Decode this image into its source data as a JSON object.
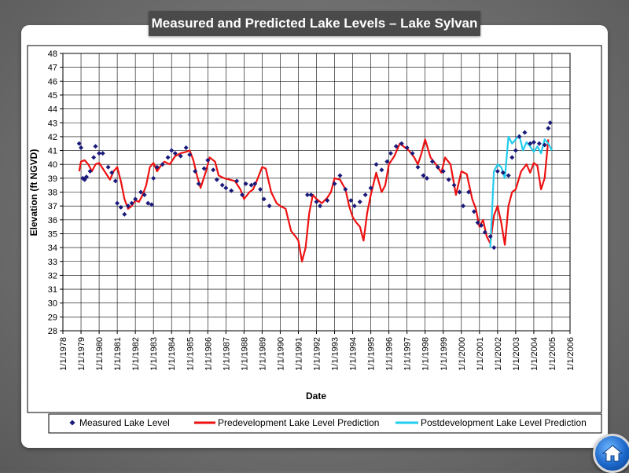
{
  "slide": {
    "title": "Measured and Predicted Lake Levels – Lake Sylvan"
  },
  "home_button": {
    "icon": "home-icon",
    "label": "Home"
  },
  "chart_data": {
    "type": "line",
    "title": "Measured and Predicted Lake Levels – Lake Sylvan",
    "xlabel": "Date",
    "ylabel": "Elevation (ft NGVD)",
    "ylim": [
      28,
      48
    ],
    "y_ticks": [
      28,
      29,
      30,
      31,
      32,
      33,
      34,
      35,
      36,
      37,
      38,
      39,
      40,
      41,
      42,
      43,
      44,
      45,
      46,
      47,
      48
    ],
    "x_range": [
      1978,
      2006
    ],
    "x_ticks": [
      {
        "year": 1978,
        "label": "1/1/1978"
      },
      {
        "year": 1979,
        "label": "1/1/1979"
      },
      {
        "year": 1980,
        "label": "1/1/1980"
      },
      {
        "year": 1981,
        "label": "1/1/1981"
      },
      {
        "year": 1982,
        "label": "1/1/1982"
      },
      {
        "year": 1983,
        "label": "1/1/1983"
      },
      {
        "year": 1984,
        "label": "1/1/1984"
      },
      {
        "year": 1985,
        "label": "1/1/1985"
      },
      {
        "year": 1986,
        "label": "1/1/1986"
      },
      {
        "year": 1987,
        "label": "1/1/1987"
      },
      {
        "year": 1988,
        "label": "1/1/1988"
      },
      {
        "year": 1989,
        "label": "1/1/1989"
      },
      {
        "year": 1990,
        "label": "1/1/1990"
      },
      {
        "year": 1991,
        "label": "1/1/1991"
      },
      {
        "year": 1992,
        "label": "1/1/1992"
      },
      {
        "year": 1993,
        "label": "1/1/1993"
      },
      {
        "year": 1994,
        "label": "1/1/1994"
      },
      {
        "year": 1995,
        "label": "1/1/1995"
      },
      {
        "year": 1996,
        "label": "1/1/1996"
      },
      {
        "year": 1997,
        "label": "1/1/1997"
      },
      {
        "year": 1998,
        "label": "1/1/1998"
      },
      {
        "year": 1999,
        "label": "1/1/1999"
      },
      {
        "year": 2000,
        "label": "1/1/2000"
      },
      {
        "year": 2001,
        "label": "1/1/2001"
      },
      {
        "year": 2002,
        "label": "1/1/2002"
      },
      {
        "year": 2003,
        "label": "1/1/2003"
      },
      {
        "year": 2004,
        "label": "1/1/2004"
      },
      {
        "year": 2005,
        "label": "1/1/2005"
      },
      {
        "year": 2006,
        "label": "1/1/2006"
      }
    ],
    "grid": true,
    "legend_position": "bottom",
    "series": [
      {
        "name": "Measured Lake Level",
        "marker": "diamond",
        "color": "#1a1a7a",
        "x": [
          1978.9,
          1979.0,
          1979.1,
          1979.2,
          1979.3,
          1979.5,
          1979.7,
          1979.8,
          1980.0,
          1980.2,
          1980.5,
          1980.7,
          1980.9,
          1981.0,
          1981.2,
          1981.4,
          1981.6,
          1981.8,
          1982.0,
          1982.3,
          1982.5,
          1982.7,
          1982.9,
          1983.0,
          1983.2,
          1983.5,
          1983.8,
          1984.0,
          1984.2,
          1984.5,
          1984.8,
          1985.0,
          1985.3,
          1985.5,
          1985.8,
          1986.0,
          1986.3,
          1986.5,
          1986.8,
          1987.0,
          1987.3,
          1987.6,
          1987.9,
          1988.1,
          1988.4,
          1988.6,
          1988.9,
          1989.1,
          1989.4,
          1991.5,
          1991.7,
          1992.0,
          1992.2,
          1992.6,
          1993.0,
          1993.3,
          1993.6,
          1993.9,
          1994.1,
          1994.4,
          1994.7,
          1995.0,
          1995.3,
          1995.6,
          1995.9,
          1996.1,
          1996.4,
          1996.7,
          1997.0,
          1997.3,
          1997.6,
          1997.9,
          1998.1,
          1998.4,
          1998.7,
          1999.0,
          1999.3,
          1999.6,
          1999.9,
          2000.1,
          2000.4,
          2000.7,
          2000.9,
          2001.1,
          2001.3,
          2001.6,
          2001.8,
          2002.0,
          2002.3,
          2002.6,
          2002.8,
          2003.0,
          2003.2,
          2003.5,
          2003.8,
          2004.0,
          2004.3,
          2004.6,
          2004.8,
          2004.9
        ],
        "y": [
          41.5,
          41.2,
          39.0,
          38.9,
          39.1,
          39.5,
          40.5,
          41.3,
          40.8,
          40.8,
          39.8,
          39.4,
          38.8,
          37.2,
          36.9,
          36.4,
          37.0,
          37.2,
          37.5,
          38.0,
          37.8,
          37.2,
          37.1,
          39.0,
          39.8,
          40.0,
          40.5,
          41.0,
          40.8,
          40.6,
          41.2,
          40.7,
          39.5,
          38.6,
          39.7,
          40.3,
          39.6,
          38.9,
          38.5,
          38.3,
          38.1,
          38.8,
          37.8,
          38.6,
          38.5,
          38.6,
          38.2,
          37.5,
          37.0,
          37.8,
          37.8,
          37.3,
          37.0,
          37.4,
          38.6,
          39.2,
          38.2,
          37.4,
          37.0,
          37.3,
          37.8,
          38.3,
          40.0,
          39.6,
          40.2,
          40.8,
          41.3,
          41.5,
          41.2,
          40.8,
          39.8,
          39.2,
          39.0,
          40.2,
          39.8,
          39.5,
          38.9,
          38.5,
          38.0,
          37.0,
          38.0,
          36.6,
          35.8,
          35.6,
          35.1,
          34.8,
          34.0,
          39.5,
          39.4,
          39.2,
          40.5,
          41.0,
          42.0,
          42.3,
          41.5,
          41.6,
          41.5,
          41.4,
          42.6,
          43.0
        ]
      },
      {
        "name": "Predevelopment Lake Level Prediction",
        "color": "#ee1111",
        "x": [
          1978.9,
          1979.0,
          1979.2,
          1979.4,
          1979.6,
          1979.8,
          1980.0,
          1980.3,
          1980.6,
          1980.8,
          1981.0,
          1981.2,
          1981.4,
          1981.6,
          1981.8,
          1982.0,
          1982.2,
          1982.4,
          1982.6,
          1982.8,
          1983.0,
          1983.2,
          1983.4,
          1983.6,
          1983.9,
          1984.2,
          1984.5,
          1984.8,
          1985.0,
          1985.2,
          1985.4,
          1985.6,
          1985.9,
          1986.1,
          1986.4,
          1986.6,
          1986.9,
          1987.2,
          1987.5,
          1987.8,
          1988.0,
          1988.3,
          1988.5,
          1988.7,
          1989.0,
          1989.2,
          1989.5,
          1989.8,
          1990.0,
          1990.3,
          1990.6,
          1990.9,
          1991.0,
          1991.2,
          1991.4,
          1991.6,
          1991.8,
          1992.0,
          1992.3,
          1992.6,
          1992.8,
          1993.0,
          1993.3,
          1993.6,
          1993.8,
          1994.0,
          1994.2,
          1994.4,
          1994.6,
          1994.8,
          1995.0,
          1995.3,
          1995.6,
          1995.8,
          1996.0,
          1996.3,
          1996.6,
          1996.9,
          1997.1,
          1997.4,
          1997.6,
          1997.8,
          1998.0,
          1998.3,
          1998.6,
          1998.9,
          1999.1,
          1999.4,
          1999.7,
          2000.0,
          2000.3,
          2000.6,
          2000.8,
          2001.0,
          2001.2,
          2001.4,
          2001.6,
          2001.8,
          2002.0,
          2002.2,
          2002.4,
          2002.6,
          2002.8,
          2003.0,
          2003.3,
          2003.6,
          2003.8,
          2004.0,
          2004.2,
          2004.4,
          2004.6,
          2004.8
        ],
        "y": [
          39.5,
          40.2,
          40.3,
          40.0,
          39.5,
          40.0,
          40.1,
          39.5,
          38.9,
          39.5,
          39.8,
          38.8,
          37.5,
          36.8,
          37.0,
          37.4,
          37.3,
          37.8,
          38.5,
          39.8,
          40.1,
          39.5,
          39.9,
          40.2,
          40.0,
          40.6,
          40.8,
          40.9,
          41.0,
          40.3,
          39.2,
          38.3,
          39.5,
          40.5,
          40.2,
          39.2,
          39.0,
          38.9,
          38.8,
          38.2,
          37.5,
          38.0,
          38.2,
          38.8,
          39.8,
          39.7,
          38.0,
          37.2,
          37.0,
          36.8,
          35.2,
          34.7,
          34.5,
          33.0,
          34.0,
          36.5,
          37.8,
          37.5,
          37.2,
          37.6,
          38.0,
          39.0,
          38.9,
          38.2,
          37.0,
          36.2,
          35.8,
          35.5,
          34.5,
          36.5,
          37.8,
          39.4,
          38.0,
          38.5,
          40.0,
          40.6,
          41.5,
          41.2,
          41.0,
          40.5,
          40.0,
          40.8,
          41.8,
          40.5,
          40.0,
          39.4,
          40.5,
          40.0,
          37.8,
          39.5,
          39.3,
          37.5,
          36.8,
          35.5,
          36.0,
          34.8,
          34.3,
          36.3,
          37.0,
          35.8,
          34.2,
          37.0,
          38.0,
          38.2,
          39.5,
          40.0,
          39.4,
          40.1,
          39.9,
          38.2,
          39.0,
          41.8
        ]
      },
      {
        "name": "Postdevelopment Lake Level Prediction",
        "color": "#22ccee",
        "x": [
          2001.6,
          2001.8,
          2002.0,
          2002.2,
          2002.4,
          2002.6,
          2002.8,
          2003.0,
          2003.2,
          2003.4,
          2003.6,
          2003.8,
          2004.0,
          2004.2,
          2004.4,
          2004.6,
          2004.8,
          2005.0
        ],
        "y": [
          34.0,
          39.5,
          40.0,
          39.8,
          39.0,
          42.0,
          41.5,
          41.8,
          42.1,
          41.0,
          41.6,
          41.3,
          40.9,
          41.3,
          40.8,
          41.8,
          41.5,
          41.0
        ]
      }
    ]
  }
}
